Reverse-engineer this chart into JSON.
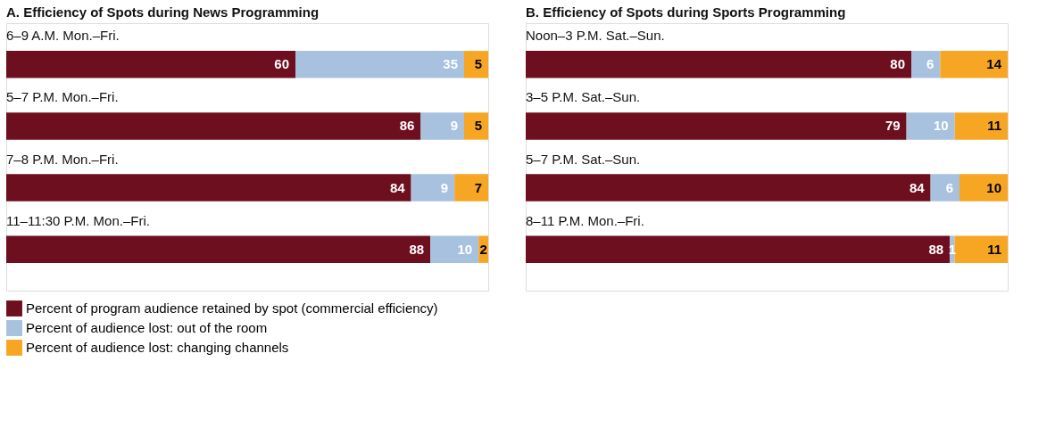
{
  "chart_data": [
    {
      "type": "bar",
      "orientation": "horizontal",
      "stacked": true,
      "data_labels": true,
      "tick_labels": false,
      "legend": "bottom",
      "title": "A. Efficiency of Spots during News Programming",
      "categories": [
        "6–9 A.M. Mon.–Fri.",
        "5–7 P.M. Mon.–Fri.",
        "7–8 P.M. Mon.–Fri.",
        "11–11:30 P.M. Mon.–Fri."
      ],
      "series": [
        {
          "name": "Percent of program audience retained by spot (commercial efficiency)",
          "color": "#6e0f1f",
          "values": [
            60,
            86,
            84,
            88
          ]
        },
        {
          "name": "Percent of audience lost: out of the room",
          "color": "#a7c1df",
          "values": [
            35,
            9,
            9,
            10
          ]
        },
        {
          "name": "Percent of audience lost: changing channels",
          "color": "#f6a623",
          "values": [
            5,
            5,
            7,
            2
          ]
        }
      ]
    },
    {
      "type": "bar",
      "orientation": "horizontal",
      "stacked": true,
      "data_labels": true,
      "tick_labels": false,
      "title": "B. Efficiency of Spots during Sports Programming",
      "categories": [
        "Noon–3 P.M. Sat.–Sun.",
        "3–5 P.M. Sat.–Sun.",
        "5–7 P.M. Sat.–Sun.",
        "8–11 P.M. Mon.–Fri."
      ],
      "series": [
        {
          "color": "#6e0f1f",
          "values": [
            80,
            79,
            84,
            88
          ]
        },
        {
          "color": "#a7c1df",
          "values": [
            6,
            10,
            6,
            1
          ]
        },
        {
          "color": "#f6a623",
          "values": [
            14,
            11,
            10,
            11
          ]
        }
      ]
    }
  ]
}
